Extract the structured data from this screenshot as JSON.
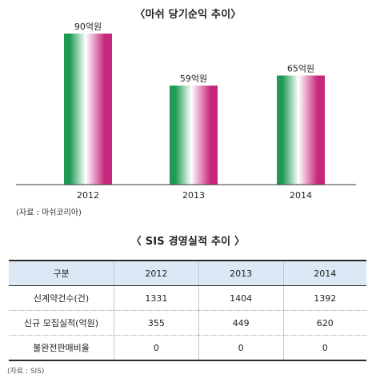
{
  "chart_data": {
    "type": "bar",
    "title": "〈마쉬 당기순익 추이〉",
    "categories": [
      "2012",
      "2013",
      "2014"
    ],
    "values": [
      90,
      59,
      65
    ],
    "value_labels": [
      "90억원",
      "59억원",
      "65억원"
    ],
    "unit": "억원",
    "ylim": [
      0,
      100
    ],
    "grid": false,
    "bar_colors": [
      "#1e9a55",
      "#ffffff",
      "#c8267d"
    ],
    "source": "(자료 : 마쉬코리아)"
  },
  "table": {
    "title": "〈 SIS 경영실적 추이 〉",
    "header": [
      "구분",
      "2012",
      "2013",
      "2014"
    ],
    "rows": [
      [
        "신계약건수(건)",
        "1331",
        "1404",
        "1392"
      ],
      [
        "신규 모집실적(억원)",
        "355",
        "449",
        "620"
      ],
      [
        "불완전판매비율",
        "0",
        "0",
        "0"
      ]
    ],
    "source": "(자료 : SIS)",
    "header_color": "#dbe9f6"
  }
}
